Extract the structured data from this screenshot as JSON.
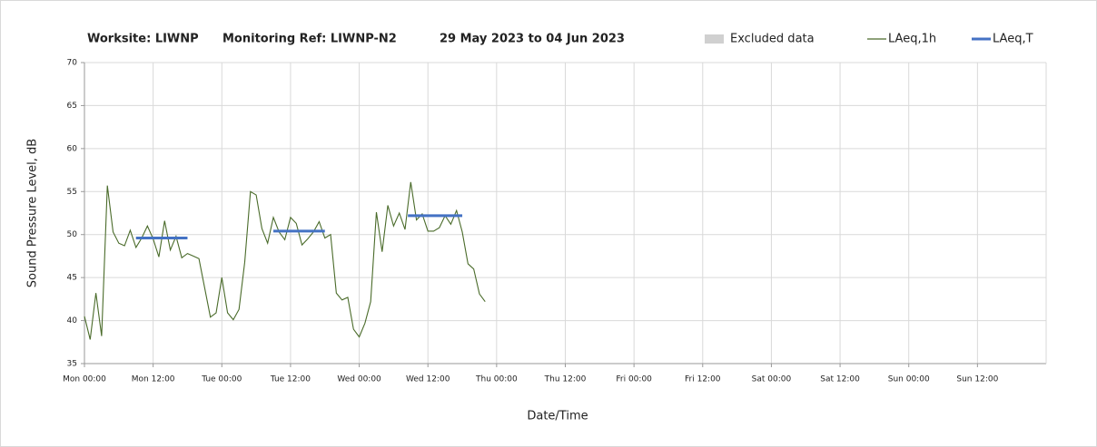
{
  "chart_data": {
    "type": "line",
    "title": [
      "Worksite: LIWNP",
      "Monitoring Ref: LIWNP-N2",
      "29 May 2023 to 04 Jun 2023"
    ],
    "x_label": "Date/Time",
    "y_label": "Sound Pressure Level, dB",
    "xlim": [
      0,
      168
    ],
    "ylim": [
      35,
      70
    ],
    "yticks": [
      35,
      40,
      45,
      50,
      55,
      60,
      65,
      70
    ],
    "xticks": [
      {
        "value": 0,
        "label": "Mon 00:00"
      },
      {
        "value": 12,
        "label": "Mon 12:00"
      },
      {
        "value": 24,
        "label": "Tue 00:00"
      },
      {
        "value": 36,
        "label": "Tue 12:00"
      },
      {
        "value": 48,
        "label": "Wed 00:00"
      },
      {
        "value": 60,
        "label": "Wed 12:00"
      },
      {
        "value": 72,
        "label": "Thu 00:00"
      },
      {
        "value": 84,
        "label": "Thu 12:00"
      },
      {
        "value": 96,
        "label": "Fri 00:00"
      },
      {
        "value": 108,
        "label": "Fri 12:00"
      },
      {
        "value": 120,
        "label": "Sat 00:00"
      },
      {
        "value": 132,
        "label": "Sat 12:00"
      },
      {
        "value": 144,
        "label": "Sun 00:00"
      },
      {
        "value": 156,
        "label": "Sun 12:00"
      }
    ],
    "grid": true,
    "legend": "top-right",
    "series": [
      {
        "name": "Excluded data",
        "color": "#d0d0d0"
      },
      {
        "name": "LAeq,1h",
        "color": "#4a6b2a",
        "x": [
          0,
          1,
          2,
          3,
          4,
          5,
          6,
          7,
          8,
          9,
          10,
          11,
          12,
          13,
          14,
          15,
          16,
          17,
          18,
          19,
          20,
          21,
          22,
          23,
          24,
          25,
          26,
          27,
          28,
          29,
          30,
          31,
          32,
          33,
          34,
          35,
          36,
          37,
          38,
          39,
          40,
          41,
          42,
          43,
          44,
          45,
          46,
          47,
          48,
          49,
          50,
          51,
          52,
          53,
          54,
          55,
          56,
          57,
          58,
          59,
          60,
          61,
          62,
          63,
          64,
          65,
          66,
          67,
          68,
          69,
          70
        ],
        "values": [
          40.5,
          37.8,
          43.2,
          38.2,
          55.7,
          50.3,
          49.0,
          48.7,
          50.5,
          48.5,
          49.6,
          51.0,
          49.5,
          47.4,
          51.6,
          48.2,
          49.8,
          47.3,
          47.8,
          47.5,
          47.2,
          43.8,
          40.4,
          40.9,
          45.0,
          40.9,
          40.1,
          41.3,
          46.8,
          55.0,
          54.6,
          50.7,
          49.0,
          52.0,
          50.3,
          49.4,
          52.0,
          51.3,
          48.8,
          49.5,
          50.3,
          51.5,
          49.6,
          50.0,
          43.2,
          42.4,
          42.7,
          39.0,
          38.1,
          39.7,
          42.2,
          52.6,
          48.0,
          53.4,
          51.0,
          52.5,
          50.6,
          56.1,
          51.7,
          52.4,
          50.4,
          50.4,
          50.8,
          52.2,
          51.2,
          52.8,
          50.3,
          46.6,
          46.0,
          43.1,
          42.2
        ]
      },
      {
        "name": "LAeq,T",
        "color": "#4472c4",
        "segments": [
          {
            "x": [
              9,
              18
            ],
            "value": 49.6
          },
          {
            "x": [
              33,
              42
            ],
            "value": 50.4
          },
          {
            "x": [
              56.5,
              66
            ],
            "value": 52.2
          }
        ]
      }
    ]
  }
}
